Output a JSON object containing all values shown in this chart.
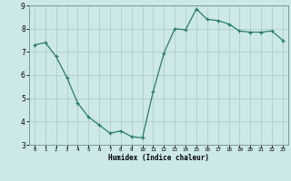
{
  "x": [
    0,
    1,
    2,
    3,
    4,
    5,
    6,
    7,
    8,
    9,
    10,
    11,
    12,
    13,
    14,
    15,
    16,
    17,
    18,
    19,
    20,
    21,
    22,
    23
  ],
  "y": [
    7.3,
    7.4,
    6.8,
    5.9,
    4.8,
    4.2,
    3.85,
    3.5,
    3.6,
    3.35,
    3.3,
    5.3,
    6.95,
    8.0,
    7.95,
    8.85,
    8.4,
    8.35,
    8.2,
    7.9,
    7.85,
    7.85,
    7.9,
    7.5
  ],
  "xlabel": "Humidex (Indice chaleur)",
  "ylim": [
    3,
    9
  ],
  "xlim": [
    -0.5,
    23.5
  ],
  "yticks": [
    3,
    4,
    5,
    6,
    7,
    8,
    9
  ],
  "xticks": [
    0,
    1,
    2,
    3,
    4,
    5,
    6,
    7,
    8,
    9,
    10,
    11,
    12,
    13,
    14,
    15,
    16,
    17,
    18,
    19,
    20,
    21,
    22,
    23
  ],
  "line_color": "#2a7a6e",
  "marker_color": "#2a7a6e",
  "bg_color": "#cce8e8",
  "grid_color": "#b0cccc",
  "spine_color": "#7a9a9a"
}
